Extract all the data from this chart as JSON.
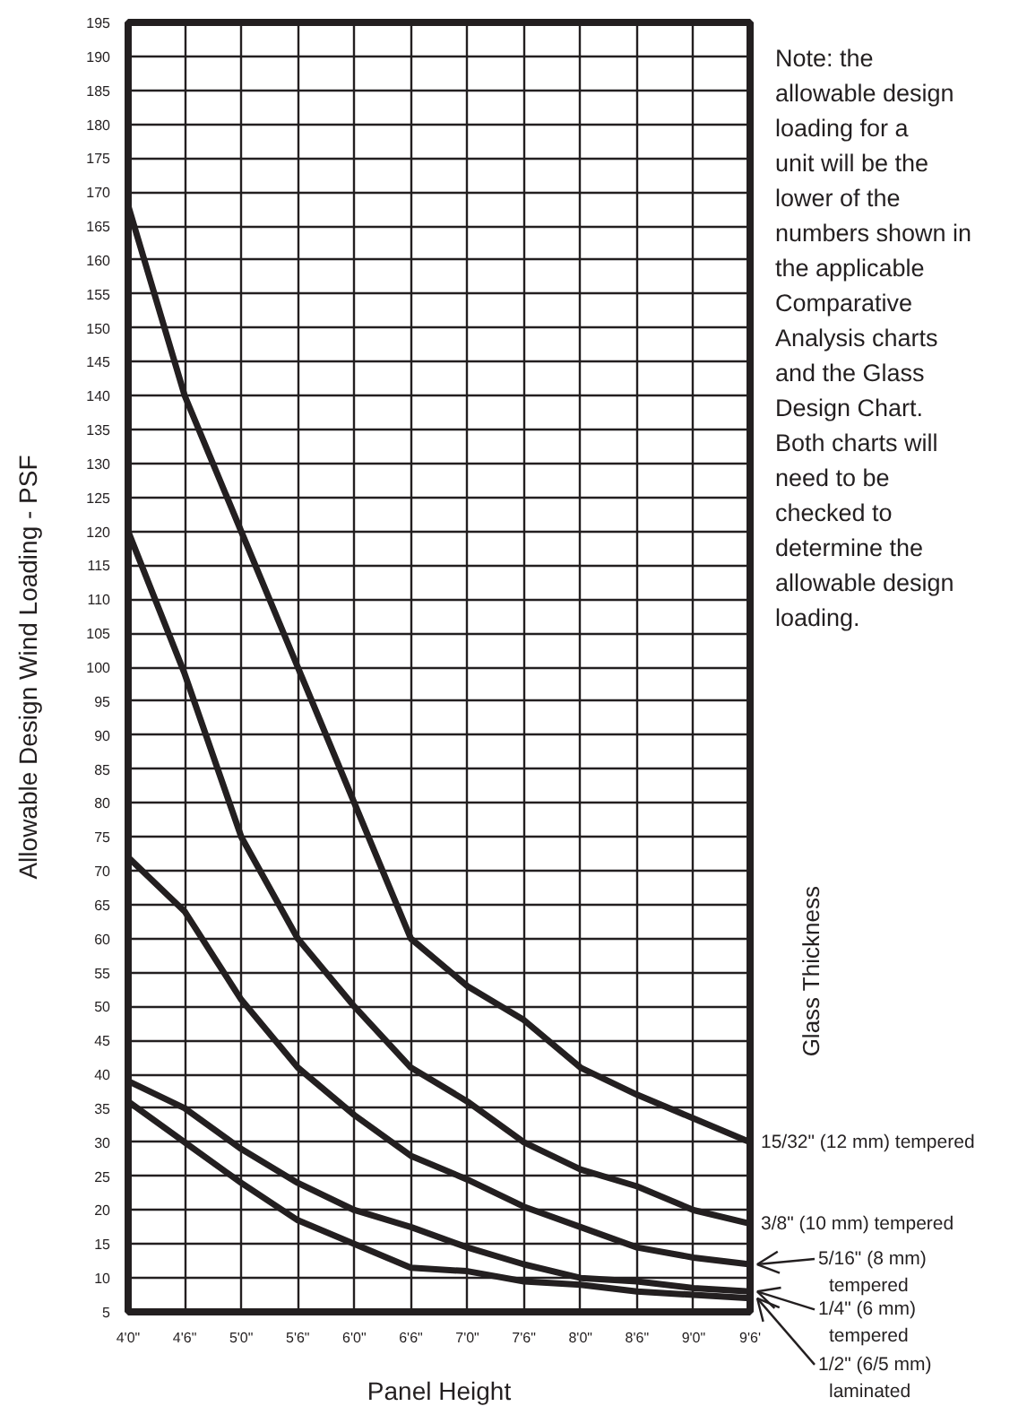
{
  "chart_data": {
    "type": "line",
    "xlabel": "Panel Height",
    "ylabel": "Allowable Design Wind Loading - PSF",
    "legend_title": "Glass Thickness",
    "categories": [
      "4'0\"",
      "4'6\"",
      "5'0\"",
      "5'6\"",
      "6'0\"",
      "6'6\"",
      "7'0\"",
      "7'6\"",
      "8'0\"",
      "8'6\"",
      "9'0\"",
      "9'6'"
    ],
    "ylim": [
      5,
      195
    ],
    "yticks": [
      5,
      10,
      15,
      20,
      25,
      30,
      35,
      40,
      45,
      50,
      55,
      60,
      65,
      70,
      75,
      80,
      85,
      90,
      95,
      100,
      105,
      110,
      115,
      120,
      125,
      130,
      135,
      140,
      145,
      150,
      155,
      160,
      165,
      170,
      175,
      180,
      185,
      190,
      195
    ],
    "grid": true,
    "legend": "right",
    "series": [
      {
        "name": "15/32\" (12 mm) tempered",
        "color": "#231f20",
        "values": [
          168,
          140,
          120,
          100,
          80,
          60,
          53,
          48,
          41,
          37,
          33.5,
          30
        ]
      },
      {
        "name": "3/8\" (10 mm) tempered",
        "color": "#231f20",
        "values": [
          120,
          99,
          75,
          60,
          50,
          41,
          36,
          30,
          26,
          23.5,
          20,
          18
        ]
      },
      {
        "name": "5/16\" (8 mm) tempered",
        "color": "#231f20",
        "values": [
          72,
          64,
          51,
          41,
          34,
          28,
          24.5,
          20.5,
          17.5,
          14.5,
          13,
          12
        ]
      },
      {
        "name": "1/4\" (6 mm) tempered",
        "color": "#231f20",
        "values": [
          39,
          35,
          29,
          24,
          20,
          17.5,
          14.5,
          12,
          10,
          9.5,
          8.5,
          8
        ]
      },
      {
        "name": "1/2\" (6/5 mm) laminated",
        "color": "#231f20",
        "values": [
          36,
          30,
          24,
          18.5,
          15,
          11.5,
          11,
          9.5,
          9,
          8,
          7.5,
          7
        ]
      }
    ],
    "annotations": [
      "Note: the allowable design loading for a unit will be the lower of the numbers shown in the applicable Comparative Analysis charts and the Glass Design Chart. Both charts will need to be checked to determine the allowable design loading."
    ]
  }
}
